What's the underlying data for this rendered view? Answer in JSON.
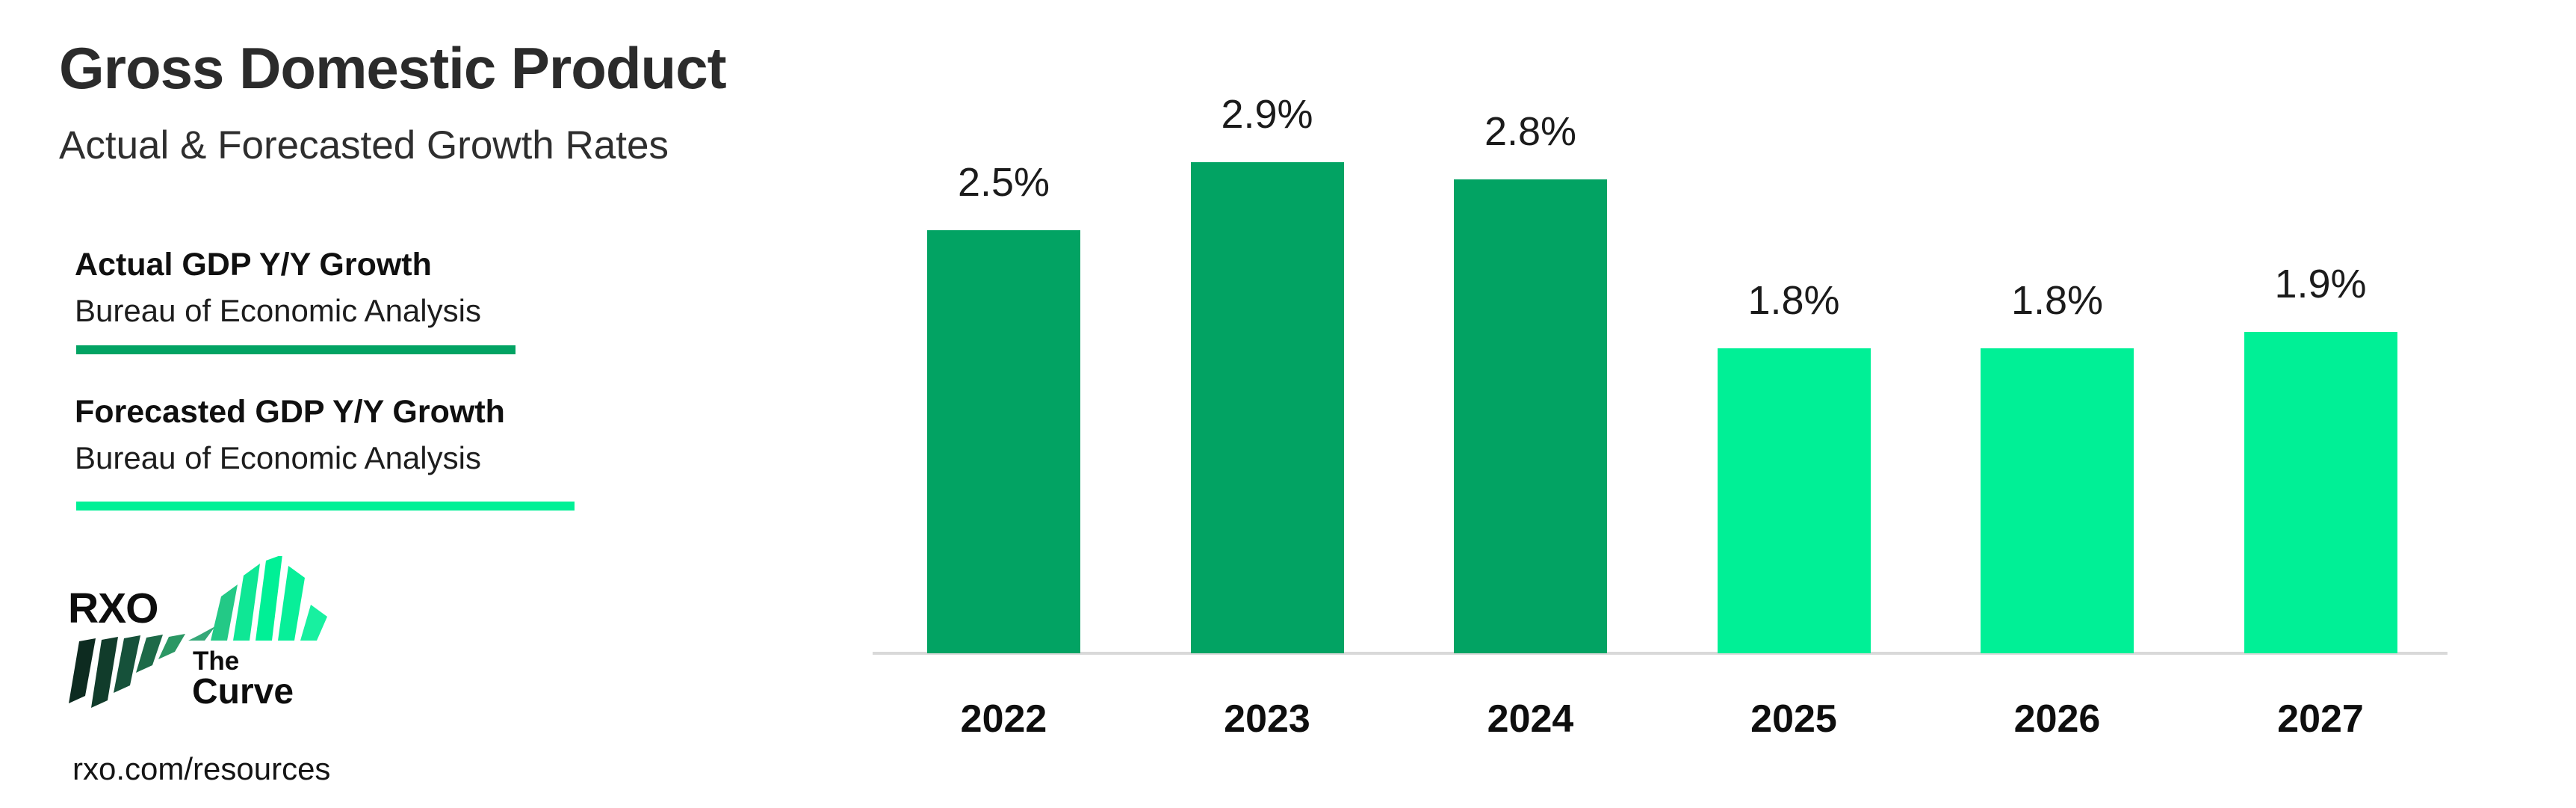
{
  "page": {
    "background": "#ffffff"
  },
  "header": {
    "title": "Gross Domestic Product",
    "subtitle": "Actual & Forecasted Growth Rates"
  },
  "legend": [
    {
      "name": "Actual GDP Y/Y Growth",
      "source": "Bureau of Economic Analysis",
      "color": "#02a363"
    },
    {
      "name": "Forecasted GDP Y/Y Growth",
      "source": "Bureau of Economic Analysis",
      "color": "#00f096"
    }
  ],
  "branding": {
    "wordmark": "RXO",
    "logo_icon": "rxo-curve-stripes-icon",
    "tagline_line1": "The",
    "tagline_line2": "Curve",
    "url": "rxo.com/resources"
  },
  "colors": {
    "actual_bar": "#02a363",
    "forecast_bar": "#00f096",
    "axis_line": "#d9d9d9",
    "text_dark": "#1b1b1b"
  },
  "chart_data": {
    "type": "bar",
    "title": "Gross Domestic Product",
    "subtitle": "Actual & Forecasted Growth Rates",
    "categories": [
      "2022",
      "2023",
      "2024",
      "2025",
      "2026",
      "2027"
    ],
    "series": [
      {
        "name": "Actual GDP Y/Y Growth",
        "source": "Bureau of Economic Analysis",
        "color": "#02a363",
        "categories": [
          "2022",
          "2023",
          "2024"
        ],
        "values": [
          2.5,
          2.9,
          2.8
        ],
        "labels": [
          "2.5%",
          "2.9%",
          "2.8%"
        ]
      },
      {
        "name": "Forecasted GDP Y/Y Growth",
        "source": "Bureau of Economic Analysis",
        "color": "#00f096",
        "categories": [
          "2025",
          "2026",
          "2027"
        ],
        "values": [
          1.8,
          1.8,
          1.9
        ],
        "labels": [
          "1.8%",
          "1.8%",
          "1.9%"
        ]
      }
    ],
    "points": [
      {
        "category": "2022",
        "value": 2.5,
        "label": "2.5%",
        "series": "Actual GDP Y/Y Growth"
      },
      {
        "category": "2023",
        "value": 2.9,
        "label": "2.9%",
        "series": "Actual GDP Y/Y Growth"
      },
      {
        "category": "2024",
        "value": 2.8,
        "label": "2.8%",
        "series": "Actual GDP Y/Y Growth"
      },
      {
        "category": "2025",
        "value": 1.8,
        "label": "1.8%",
        "series": "Forecasted GDP Y/Y Growth"
      },
      {
        "category": "2026",
        "value": 1.8,
        "label": "1.8%",
        "series": "Forecasted GDP Y/Y Growth"
      },
      {
        "category": "2027",
        "value": 1.9,
        "label": "1.9%",
        "series": "Forecasted GDP Y/Y Growth"
      }
    ],
    "ylim": [
      0,
      3.1
    ],
    "grid": false,
    "y_axis_visible": false,
    "value_labels_position": "above-bars",
    "legend_position": "left"
  }
}
